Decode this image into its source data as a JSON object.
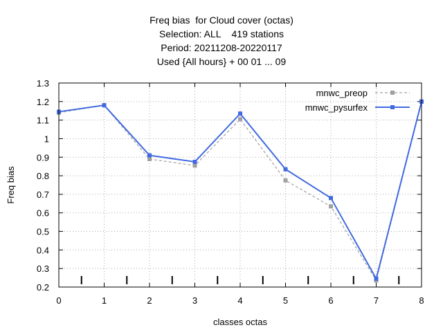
{
  "chart_data": {
    "type": "line",
    "title_lines": [
      "Freq bias  for Cloud cover (octas)",
      "Selection: ALL    419 stations",
      "Period: 20211208-20220117",
      "Used {All hours} + 00 01 ... 09"
    ],
    "xlabel": "classes octas",
    "ylabel": "Freq bias",
    "x": [
      0,
      1,
      2,
      3,
      4,
      5,
      6,
      7,
      8
    ],
    "xlim": [
      0,
      8
    ],
    "ylim": [
      0.2,
      1.3
    ],
    "xticks": [
      "0",
      "1",
      "2",
      "3",
      "4",
      "5",
      "6",
      "7",
      "8"
    ],
    "yticks": [
      "0.2",
      "0.3",
      "0.4",
      "0.5",
      "0.6",
      "0.7",
      "0.8",
      "0.9",
      "1",
      "1.1",
      "1.2",
      "1.3"
    ],
    "grid": true,
    "legend_position": "top-right",
    "series": [
      {
        "name": "mnwc_preop",
        "color": "#a0a0a0",
        "dashed": true,
        "values": [
          1.14,
          1.18,
          0.89,
          0.855,
          1.105,
          0.775,
          0.635,
          0.235,
          1.2
        ]
      },
      {
        "name": "mnwc_pysurfex",
        "color": "#4169e1",
        "dashed": false,
        "values": [
          1.145,
          1.18,
          0.91,
          0.875,
          1.135,
          0.835,
          0.68,
          0.245,
          1.2
        ]
      }
    ]
  }
}
